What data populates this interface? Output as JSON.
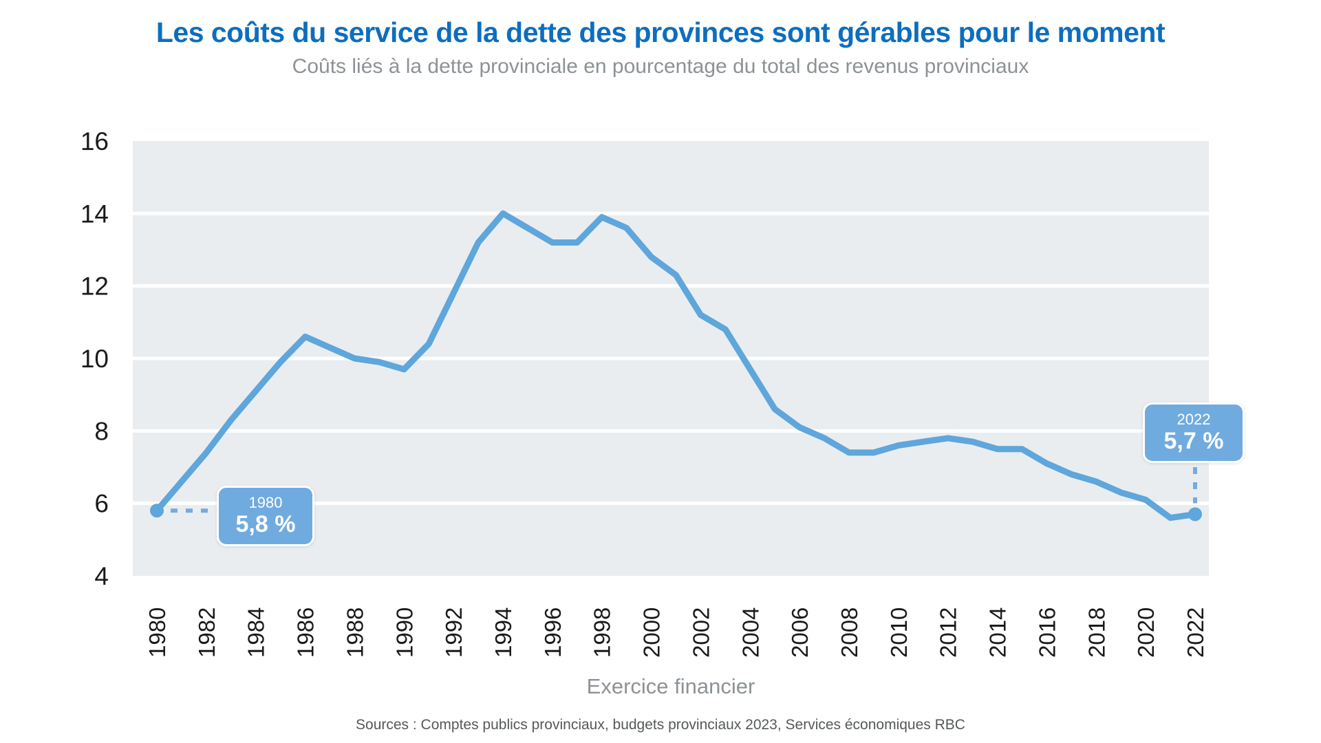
{
  "header": {
    "title": "Les coûts du service de la dette des provinces sont gérables pour le moment",
    "subtitle": "Coûts liés à la dette provinciale en pourcentage du total des revenus provinciaux"
  },
  "chart_data": {
    "type": "line",
    "title": "Les coûts du service de la dette des provinces sont gérables pour le moment",
    "subtitle": "Coûts liés à la dette provinciale en pourcentage du total des revenus provinciaux",
    "xlabel": "Exercice financier",
    "ylabel": "",
    "ylim": [
      4,
      16
    ],
    "yticks": [
      4,
      6,
      8,
      10,
      12,
      14,
      16
    ],
    "xticks": [
      1980,
      1982,
      1984,
      1986,
      1988,
      1990,
      1992,
      1994,
      1996,
      1998,
      2000,
      2002,
      2004,
      2006,
      2008,
      2010,
      2012,
      2014,
      2016,
      2018,
      2020,
      2022
    ],
    "x": [
      1980,
      1981,
      1982,
      1983,
      1984,
      1985,
      1986,
      1987,
      1988,
      1989,
      1990,
      1991,
      1992,
      1993,
      1994,
      1995,
      1996,
      1997,
      1998,
      1999,
      2000,
      2001,
      2002,
      2003,
      2004,
      2005,
      2006,
      2007,
      2008,
      2009,
      2010,
      2011,
      2012,
      2013,
      2014,
      2015,
      2016,
      2017,
      2018,
      2019,
      2020,
      2021,
      2022
    ],
    "values": [
      5.8,
      6.6,
      7.4,
      8.3,
      9.1,
      9.9,
      10.6,
      10.3,
      10.0,
      9.9,
      9.7,
      10.4,
      11.8,
      13.2,
      14.0,
      13.6,
      13.2,
      13.2,
      13.9,
      13.6,
      12.8,
      12.3,
      11.2,
      10.8,
      9.7,
      8.6,
      8.1,
      7.8,
      7.4,
      7.4,
      7.6,
      7.7,
      7.8,
      7.7,
      7.5,
      7.5,
      7.1,
      6.8,
      6.6,
      6.3,
      6.1,
      5.6,
      5.7
    ],
    "grid": "horizontal white gridlines on light gray panel",
    "legend_position": "none"
  },
  "annotations": {
    "start": {
      "year_label": "1980",
      "value_label": "5,8 %"
    },
    "end": {
      "year_label": "2022",
      "value_label": "5,7 %"
    }
  },
  "footer": {
    "source": "Sources : Comptes publics provinciaux, budgets provinciaux 2023, Services économiques RBC"
  },
  "colors": {
    "title_blue": "#0d6ebd",
    "subtitle_gray": "#8d9296",
    "axis_text": "#1a1a1a",
    "plot_background": "#e9edf0",
    "gridline": "#ffffff",
    "line": "#5ea6db",
    "callout_fill": "#70abdf",
    "callout_text": "#ffffff",
    "connector": "#74acdc",
    "source_gray": "#55585a"
  }
}
